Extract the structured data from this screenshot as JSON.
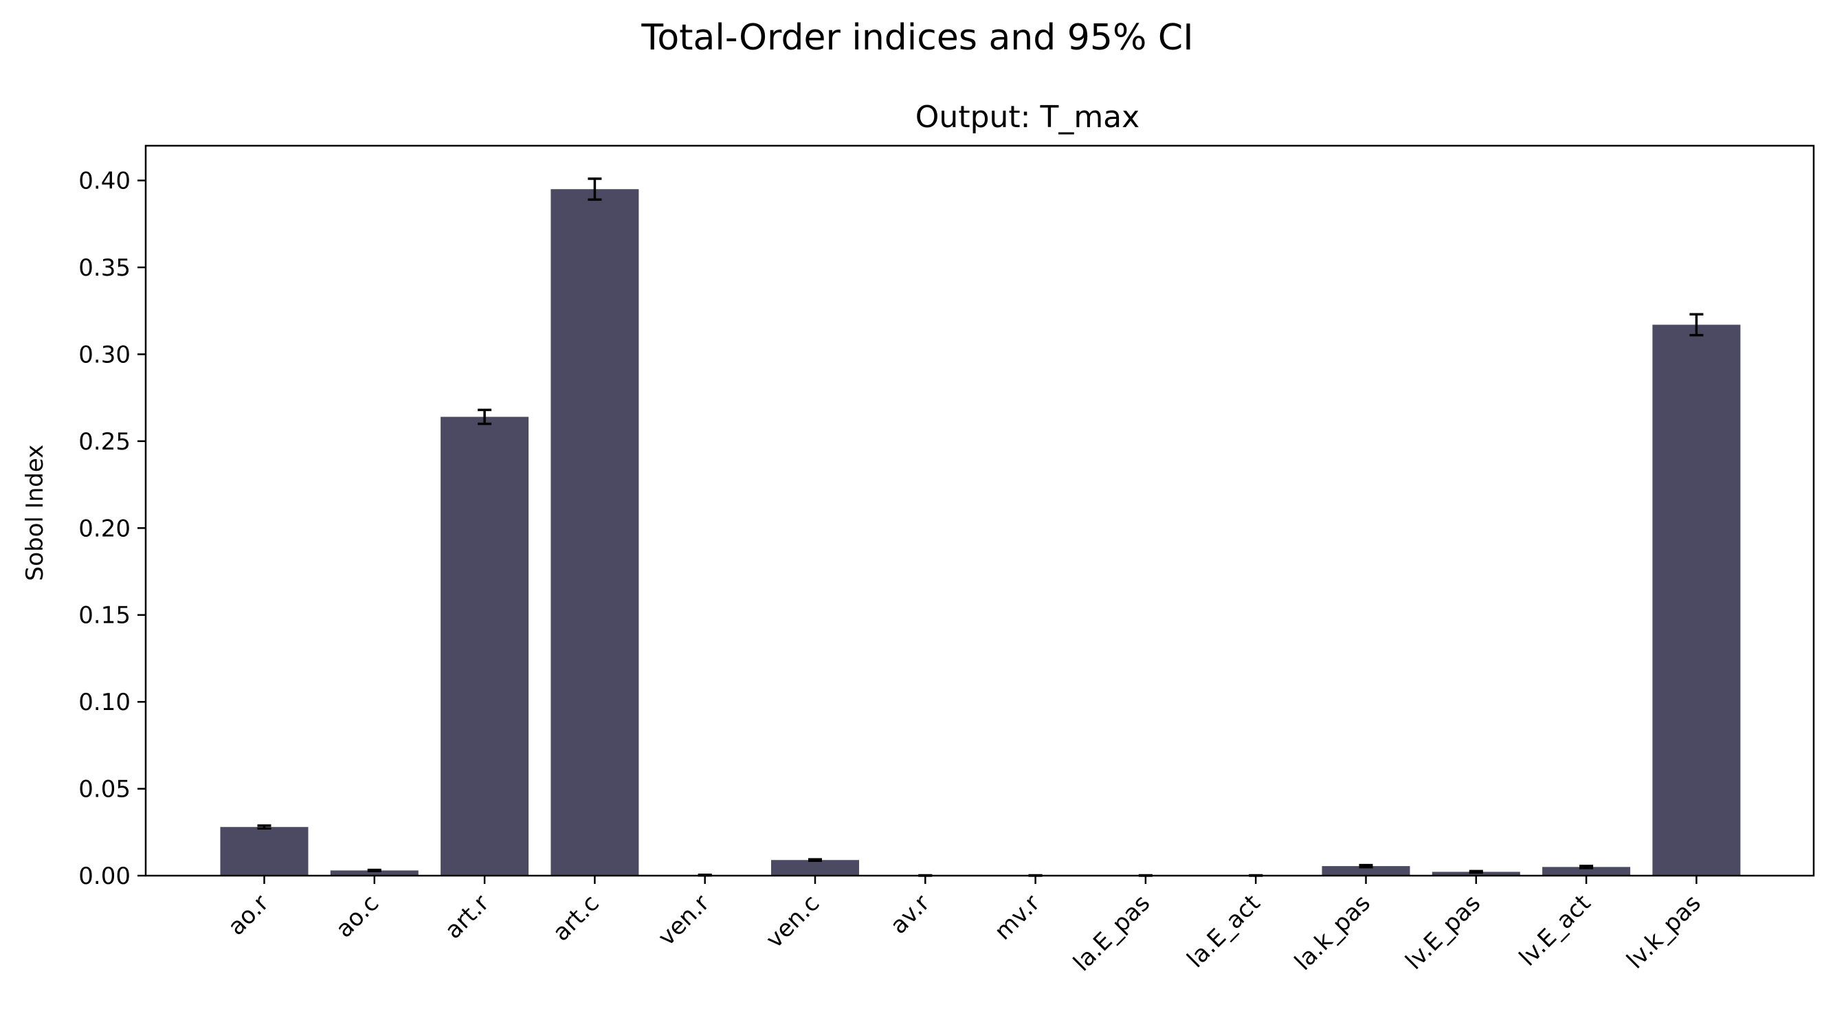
{
  "chart_data": {
    "type": "bar",
    "suptitle": "Total-Order indices and 95% CI",
    "title": "Output: T_max",
    "xlabel": "",
    "ylabel": "Sobol Index",
    "categories": [
      "ao.r",
      "ao.c",
      "art.r",
      "art.c",
      "ven.r",
      "ven.c",
      "av.r",
      "mv.r",
      "la.E_pas",
      "la.E_act",
      "la.k_pas",
      "lv.E_pas",
      "lv.E_act",
      "lv.k_pas"
    ],
    "values": [
      0.028,
      0.003,
      0.264,
      0.395,
      0.0003,
      0.009,
      0.0001,
      0.0001,
      0.0001,
      0.0001,
      0.0055,
      0.0022,
      0.005,
      0.317
    ],
    "ci": [
      0.0008,
      0.0003,
      0.004,
      0.006,
      0.0002,
      0.0004,
      0.0001,
      0.0001,
      0.0001,
      0.0001,
      0.0006,
      0.0004,
      0.0006,
      0.006
    ],
    "ylim": [
      0,
      0.42
    ],
    "yticks": [
      "0.00",
      "0.05",
      "0.10",
      "0.15",
      "0.20",
      "0.25",
      "0.30",
      "0.35",
      "0.40"
    ],
    "bar_color": "#4b4a62",
    "error_color": "#000000",
    "grid": false,
    "legend": "none"
  }
}
